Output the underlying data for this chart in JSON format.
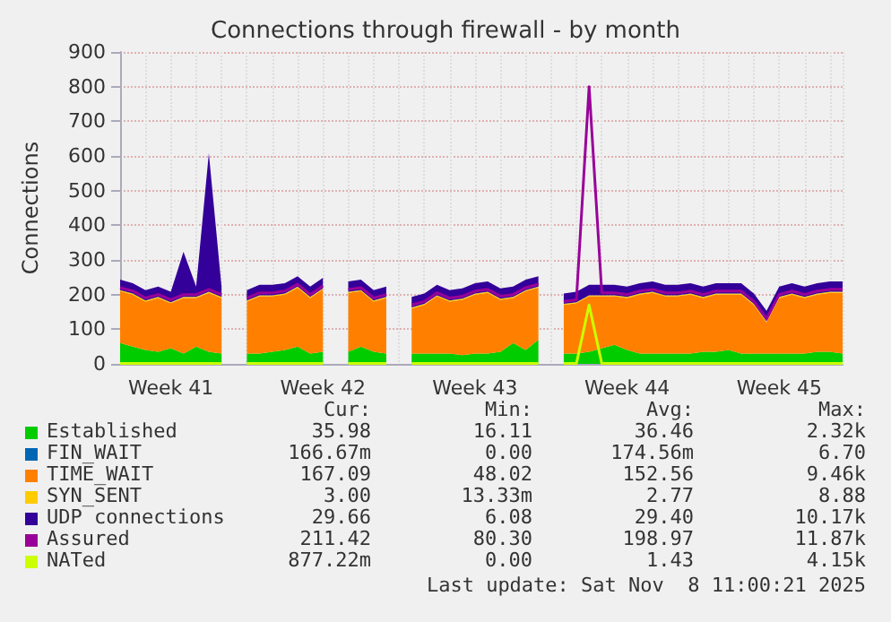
{
  "chart_data": {
    "type": "area",
    "title": "Connections through firewall - by month",
    "ylabel": "Connections",
    "categories": [
      null,
      null,
      null,
      null,
      "Week 41",
      null,
      null,
      null,
      null,
      null,
      null,
      null,
      null,
      null,
      null,
      null,
      "Week 42",
      null,
      null,
      null,
      null,
      null,
      null,
      null,
      null,
      null,
      null,
      null,
      "Week 43",
      null,
      null,
      null,
      null,
      null,
      null,
      null,
      null,
      null,
      null,
      null,
      "Week 44",
      null,
      null,
      null,
      null,
      null,
      null,
      null,
      null,
      null,
      null,
      null,
      "Week 45",
      null,
      null,
      null,
      null,
      null
    ],
    "stacked": true,
    "ylim": [
      0,
      900
    ],
    "yticks": [
      0,
      100,
      200,
      300,
      400,
      500,
      600,
      700,
      800,
      900
    ],
    "grid": true,
    "legend": "bottom",
    "series": [
      {
        "name": "Established",
        "color": "#00cc00",
        "values": [
          60,
          50,
          40,
          35,
          45,
          30,
          50,
          35,
          30,
          null,
          30,
          30,
          35,
          40,
          50,
          30,
          35,
          null,
          35,
          50,
          35,
          30,
          null,
          30,
          30,
          30,
          30,
          25,
          30,
          30,
          35,
          60,
          40,
          70,
          null,
          30,
          30,
          35,
          45,
          55,
          40,
          30,
          30,
          30,
          30,
          30,
          35,
          35,
          40,
          30,
          30,
          30,
          30,
          30,
          30,
          35,
          35,
          30
        ]
      },
      {
        "name": "FIN_WAIT",
        "color": "#0066b3",
        "values": [
          null,
          null,
          null,
          null,
          null,
          null,
          null,
          null,
          null,
          null,
          null,
          null,
          null,
          null,
          null,
          null,
          null,
          null,
          null,
          null,
          null,
          null,
          null,
          null,
          null,
          null,
          null,
          null,
          null,
          null,
          null,
          null,
          null,
          null,
          null,
          null,
          null,
          null,
          null,
          null,
          null,
          null,
          null,
          null,
          null,
          null,
          null,
          null,
          null,
          null,
          null,
          null,
          null,
          null,
          null,
          null,
          null,
          null
        ]
      },
      {
        "name": "TIME_WAIT",
        "color": "#ff8000",
        "values": [
          150,
          150,
          140,
          155,
          130,
          160,
          140,
          170,
          160,
          null,
          150,
          165,
          160,
          160,
          170,
          160,
          180,
          null,
          170,
          160,
          145,
          160,
          null,
          130,
          140,
          165,
          150,
          160,
          170,
          175,
          150,
          130,
          170,
          150,
          null,
          140,
          145,
          160,
          150,
          140,
          150,
          170,
          175,
          165,
          165,
          170,
          155,
          165,
          160,
          170,
          140,
          90,
          160,
          170,
          160,
          165,
          170,
          175
        ]
      },
      {
        "name": "SYN_SENT",
        "color": "#ffcc00",
        "values": [
          3,
          3,
          3,
          3,
          3,
          3,
          3,
          3,
          3,
          null,
          3,
          3,
          3,
          3,
          3,
          3,
          3,
          null,
          3,
          3,
          3,
          3,
          null,
          3,
          3,
          3,
          3,
          3,
          3,
          3,
          3,
          3,
          3,
          3,
          null,
          3,
          3,
          3,
          3,
          3,
          3,
          3,
          3,
          3,
          3,
          3,
          3,
          3,
          3,
          3,
          3,
          3,
          3,
          3,
          3,
          3,
          3,
          3
        ]
      },
      {
        "name": "UDP connections",
        "color": "#330099",
        "values": [
          30,
          30,
          30,
          30,
          30,
          130,
          30,
          400,
          30,
          null,
          30,
          30,
          30,
          30,
          30,
          30,
          30,
          null,
          30,
          30,
          30,
          30,
          null,
          30,
          30,
          30,
          30,
          30,
          30,
          30,
          30,
          30,
          30,
          30,
          null,
          30,
          30,
          30,
          30,
          30,
          30,
          30,
          30,
          30,
          30,
          30,
          30,
          30,
          30,
          30,
          30,
          30,
          30,
          30,
          30,
          30,
          30,
          30
        ]
      },
      {
        "name": "Assured",
        "color": "#990099",
        "type": "line",
        "values": [
          220,
          210,
          190,
          200,
          185,
          200,
          200,
          215,
          200,
          null,
          190,
          205,
          205,
          210,
          230,
          200,
          225,
          null,
          215,
          220,
          190,
          200,
          null,
          170,
          180,
          205,
          190,
          195,
          210,
          215,
          195,
          200,
          220,
          230,
          null,
          180,
          185,
          800,
          205,
          205,
          200,
          210,
          215,
          205,
          205,
          210,
          200,
          210,
          210,
          210,
          180,
          130,
          200,
          210,
          200,
          210,
          215,
          215
        ]
      },
      {
        "name": "NATed",
        "color": "#ccff00",
        "type": "line",
        "values": [
          1,
          1,
          1,
          1,
          1,
          1,
          1,
          1,
          1,
          null,
          1,
          1,
          1,
          1,
          1,
          1,
          1,
          null,
          1,
          1,
          1,
          1,
          null,
          1,
          1,
          1,
          1,
          1,
          1,
          1,
          1,
          1,
          1,
          1,
          null,
          1,
          1,
          170,
          1,
          1,
          1,
          1,
          1,
          1,
          1,
          1,
          1,
          1,
          1,
          1,
          1,
          1,
          1,
          1,
          1,
          1,
          1,
          1
        ]
      }
    ],
    "annotations": [
      "Cur:",
      "Min:",
      "Avg:",
      "Max:",
      "35.98",
      "16.11",
      "36.46",
      "2.32k",
      "166.67m",
      "0.00",
      "174.56m",
      "6.70",
      "167.09",
      "48.02",
      "152.56",
      "9.46k",
      "3.00",
      "13.33m",
      "2.77",
      "8.88",
      "29.66",
      "6.08",
      "29.40",
      "10.17k",
      "211.42",
      "80.30",
      "198.97",
      "11.87k",
      "877.22m",
      "0.00",
      "1.43",
      "4.15k",
      "Last update: Sat Nov  8 11:00:21 2025"
    ]
  }
}
